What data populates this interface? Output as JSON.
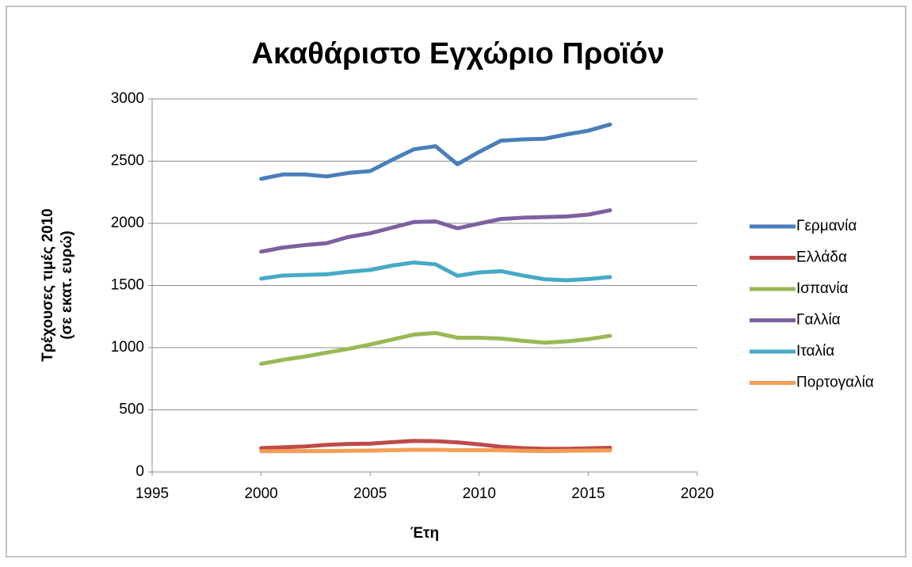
{
  "chart_data": {
    "type": "line",
    "title": "Ακαθάριστο Εγχώριο Προϊόν",
    "xlabel": "Έτη",
    "ylabel": [
      "Τρέχουσες τιμές 2010",
      "(σε εκατ. ευρώ)"
    ],
    "x": [
      2000,
      2001,
      2002,
      2003,
      2004,
      2005,
      2006,
      2007,
      2008,
      2009,
      2010,
      2011,
      2012,
      2013,
      2014,
      2015,
      2016
    ],
    "series": [
      {
        "name": "Γερμανία",
        "color": "#4a7ebb",
        "values": [
          2358,
          2393,
          2393,
          2377,
          2405,
          2420,
          2510,
          2595,
          2620,
          2475,
          2575,
          2665,
          2675,
          2680,
          2715,
          2745,
          2795
        ]
      },
      {
        "name": "Ελλάδα",
        "color": "#be4b48",
        "values": [
          192,
          198,
          205,
          218,
          225,
          228,
          240,
          250,
          248,
          238,
          222,
          202,
          192,
          186,
          186,
          190,
          195
        ]
      },
      {
        "name": "Ισπανία",
        "color": "#98b954",
        "values": [
          870,
          902,
          928,
          960,
          990,
          1025,
          1065,
          1105,
          1118,
          1080,
          1080,
          1073,
          1055,
          1040,
          1050,
          1068,
          1095
        ]
      },
      {
        "name": "Γαλλία",
        "color": "#7d60a0",
        "values": [
          1772,
          1805,
          1825,
          1840,
          1890,
          1920,
          1965,
          2010,
          2015,
          1960,
          1998,
          2035,
          2045,
          2050,
          2055,
          2070,
          2105
        ]
      },
      {
        "name": "Ιταλία",
        "color": "#46aac5",
        "values": [
          1555,
          1580,
          1585,
          1590,
          1610,
          1625,
          1660,
          1685,
          1670,
          1578,
          1605,
          1615,
          1580,
          1550,
          1542,
          1552,
          1568
        ]
      },
      {
        "name": "Πορτογαλία",
        "color": "#f59d56",
        "values": [
          167,
          168,
          168,
          168,
          170,
          172,
          175,
          178,
          178,
          175,
          175,
          174,
          170,
          168,
          170,
          172,
          173
        ]
      }
    ],
    "xlim": [
      1995,
      2020
    ],
    "xticks": [
      1995,
      2000,
      2005,
      2010,
      2015,
      2020
    ],
    "ylim": [
      0,
      3000
    ],
    "yticks": [
      0,
      500,
      1000,
      1500,
      2000,
      2500,
      3000
    ],
    "grid": true,
    "legend": "right"
  }
}
